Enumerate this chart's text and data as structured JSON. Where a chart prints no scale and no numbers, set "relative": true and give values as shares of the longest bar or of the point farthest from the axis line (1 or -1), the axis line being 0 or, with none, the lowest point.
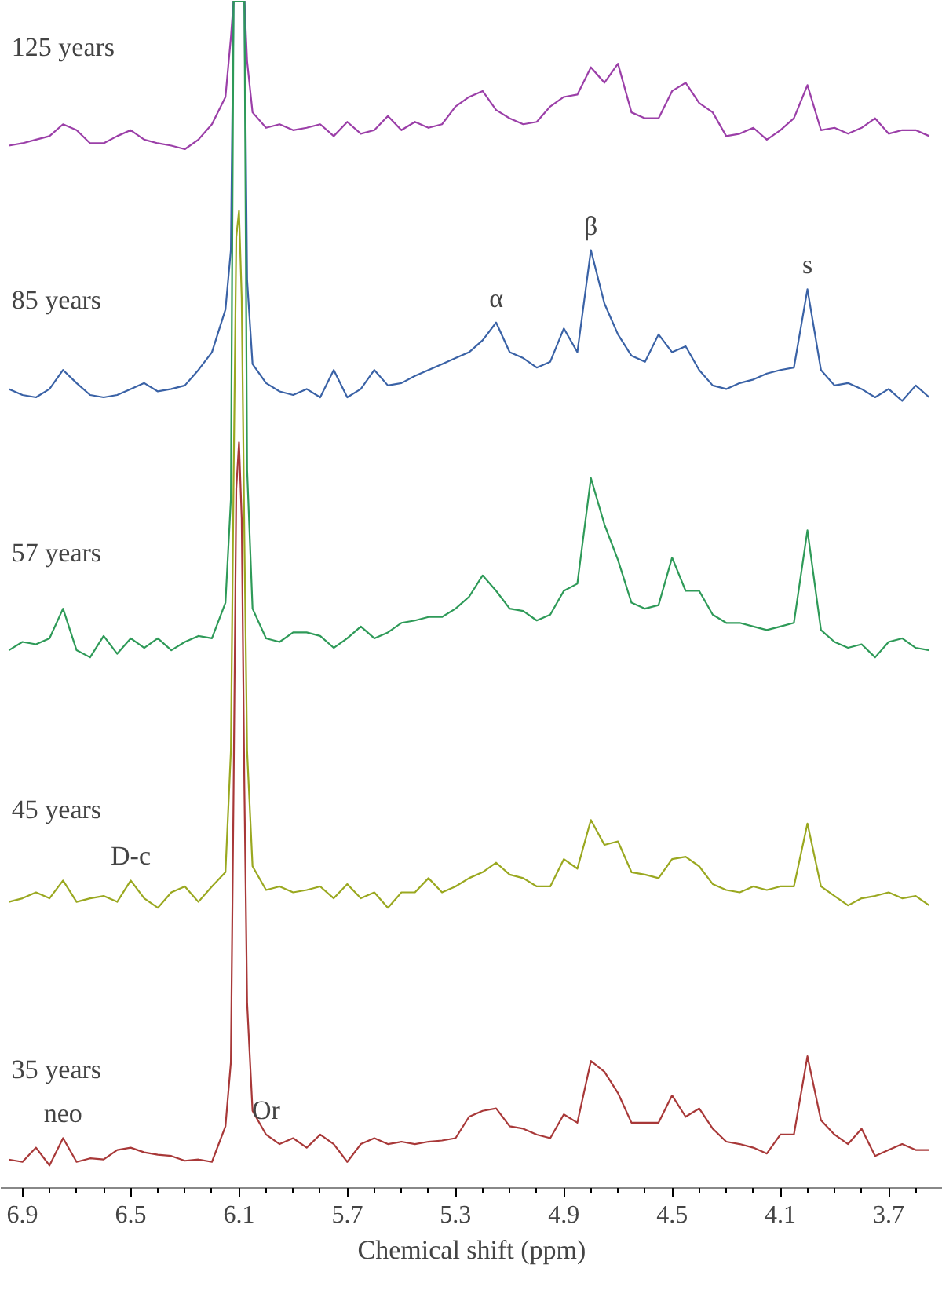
{
  "chart_data": {
    "type": "line",
    "relative": true,
    "xlabel": "Chemical shift (ppm)",
    "xlim": [
      6.98,
      3.5
    ],
    "xticks": [
      6.9,
      6.5,
      6.1,
      5.7,
      5.3,
      4.9,
      4.5,
      4.1,
      3.7
    ],
    "grid": false,
    "marker": "none",
    "line_style": "solid",
    "x": [
      6.95,
      6.9,
      6.85,
      6.8,
      6.75,
      6.7,
      6.65,
      6.6,
      6.55,
      6.5,
      6.45,
      6.4,
      6.35,
      6.3,
      6.25,
      6.2,
      6.15,
      6.13,
      6.12,
      6.11,
      6.1,
      6.09,
      6.08,
      6.07,
      6.05,
      6.0,
      5.95,
      5.9,
      5.85,
      5.8,
      5.75,
      5.7,
      5.65,
      5.6,
      5.55,
      5.5,
      5.45,
      5.4,
      5.35,
      5.3,
      5.25,
      5.2,
      5.15,
      5.1,
      5.05,
      5.0,
      4.95,
      4.9,
      4.85,
      4.8,
      4.75,
      4.7,
      4.65,
      4.6,
      4.55,
      4.5,
      4.45,
      4.4,
      4.35,
      4.3,
      4.25,
      4.2,
      4.15,
      4.1,
      4.05,
      4.0,
      3.95,
      3.9,
      3.85,
      3.8,
      3.75,
      3.7,
      3.65,
      3.6,
      3.55
    ],
    "series": [
      {
        "name": "125 years",
        "color": "#9b3fa8",
        "values": [
          0.878,
          0.88,
          0.883,
          0.886,
          0.896,
          0.891,
          0.88,
          0.88,
          0.886,
          0.891,
          0.883,
          0.88,
          0.878,
          0.875,
          0.883,
          0.896,
          0.919,
          0.969,
          1,
          1,
          1,
          1,
          1,
          0.949,
          0.906,
          0.893,
          0.896,
          0.891,
          0.893,
          0.896,
          0.886,
          0.898,
          0.888,
          0.891,
          0.903,
          0.891,
          0.898,
          0.893,
          0.896,
          0.911,
          0.919,
          0.924,
          0.908,
          0.901,
          0.896,
          0.898,
          0.911,
          0.919,
          0.921,
          0.944,
          0.931,
          0.947,
          0.906,
          0.901,
          0.901,
          0.924,
          0.931,
          0.914,
          0.906,
          0.886,
          0.888,
          0.893,
          0.883,
          0.891,
          0.901,
          0.929,
          0.891,
          0.893,
          0.888,
          0.893,
          0.901,
          0.888,
          0.891,
          0.891,
          0.886
        ]
      },
      {
        "name": "85 years",
        "color": "#3a62a6",
        "values": [
          0.673,
          0.668,
          0.666,
          0.673,
          0.689,
          0.678,
          0.668,
          0.666,
          0.668,
          0.673,
          0.678,
          0.671,
          0.673,
          0.676,
          0.689,
          0.704,
          0.74,
          0.79,
          1,
          1,
          1,
          1,
          1,
          0.765,
          0.694,
          0.678,
          0.671,
          0.668,
          0.673,
          0.666,
          0.689,
          0.666,
          0.673,
          0.689,
          0.676,
          0.678,
          0.684,
          0.689,
          0.694,
          0.699,
          0.704,
          0.714,
          0.729,
          0.704,
          0.699,
          0.691,
          0.696,
          0.724,
          0.704,
          0.79,
          0.745,
          0.719,
          0.701,
          0.696,
          0.719,
          0.704,
          0.709,
          0.689,
          0.676,
          0.673,
          0.678,
          0.681,
          0.686,
          0.689,
          0.691,
          0.757,
          0.689,
          0.676,
          0.678,
          0.673,
          0.666,
          0.673,
          0.663,
          0.676,
          0.666
        ]
      },
      {
        "name": "57 years",
        "color": "#2e9a58",
        "values": [
          0.453,
          0.46,
          0.458,
          0.463,
          0.488,
          0.453,
          0.447,
          0.465,
          0.45,
          0.463,
          0.455,
          0.463,
          0.453,
          0.46,
          0.465,
          0.463,
          0.493,
          0.58,
          1,
          1,
          1,
          1,
          1,
          0.605,
          0.488,
          0.463,
          0.46,
          0.468,
          0.468,
          0.465,
          0.455,
          0.463,
          0.473,
          0.463,
          0.468,
          0.476,
          0.478,
          0.481,
          0.481,
          0.488,
          0.498,
          0.516,
          0.503,
          0.488,
          0.486,
          0.478,
          0.483,
          0.503,
          0.509,
          0.598,
          0.559,
          0.529,
          0.493,
          0.488,
          0.491,
          0.531,
          0.503,
          0.503,
          0.483,
          0.476,
          0.476,
          0.473,
          0.47,
          0.473,
          0.476,
          0.554,
          0.47,
          0.46,
          0.455,
          0.458,
          0.447,
          0.46,
          0.463,
          0.455,
          0.453
        ]
      },
      {
        "name": "45 years",
        "color": "#9aa820",
        "values": [
          0.241,
          0.244,
          0.249,
          0.244,
          0.259,
          0.241,
          0.244,
          0.246,
          0.241,
          0.259,
          0.244,
          0.236,
          0.249,
          0.254,
          0.241,
          0.254,
          0.266,
          0.368,
          0.597,
          0.801,
          0.823,
          0.75,
          0.546,
          0.368,
          0.271,
          0.251,
          0.254,
          0.249,
          0.251,
          0.254,
          0.244,
          0.256,
          0.244,
          0.249,
          0.236,
          0.249,
          0.249,
          0.261,
          0.249,
          0.254,
          0.261,
          0.266,
          0.274,
          0.264,
          0.261,
          0.254,
          0.254,
          0.277,
          0.269,
          0.31,
          0.289,
          0.292,
          0.266,
          0.264,
          0.261,
          0.277,
          0.279,
          0.271,
          0.256,
          0.251,
          0.249,
          0.254,
          0.251,
          0.254,
          0.254,
          0.307,
          0.254,
          0.246,
          0.238,
          0.244,
          0.246,
          0.249,
          0.244,
          0.246,
          0.238
        ]
      },
      {
        "name": "35 years",
        "color": "#a83838",
        "values": [
          0.024,
          0.022,
          0.034,
          0.019,
          0.042,
          0.022,
          0.025,
          0.024,
          0.032,
          0.034,
          0.03,
          0.028,
          0.027,
          0.023,
          0.024,
          0.022,
          0.052,
          0.106,
          0.335,
          0.589,
          0.628,
          0.564,
          0.335,
          0.156,
          0.065,
          0.045,
          0.037,
          0.042,
          0.034,
          0.045,
          0.037,
          0.022,
          0.037,
          0.042,
          0.037,
          0.039,
          0.037,
          0.039,
          0.04,
          0.042,
          0.06,
          0.065,
          0.067,
          0.052,
          0.05,
          0.045,
          0.042,
          0.062,
          0.055,
          0.107,
          0.098,
          0.08,
          0.055,
          0.055,
          0.055,
          0.078,
          0.06,
          0.067,
          0.05,
          0.039,
          0.037,
          0.034,
          0.029,
          0.045,
          0.045,
          0.111,
          0.057,
          0.045,
          0.037,
          0.05,
          0.027,
          0.032,
          0.037,
          0.032,
          0.032
        ]
      }
    ],
    "annotations": [
      {
        "text": "α",
        "x": 5.15,
        "y": 0.729
      },
      {
        "text": "β",
        "x": 4.8,
        "y": 0.79
      },
      {
        "text": "s",
        "x": 4.0,
        "y": 0.757
      },
      {
        "text": "D-c",
        "x": 6.5,
        "y": 0.259
      },
      {
        "text": "neo",
        "x": 6.75,
        "y": 0.042
      },
      {
        "text": "Or",
        "x": 6.0,
        "y": 0.045
      }
    ]
  }
}
